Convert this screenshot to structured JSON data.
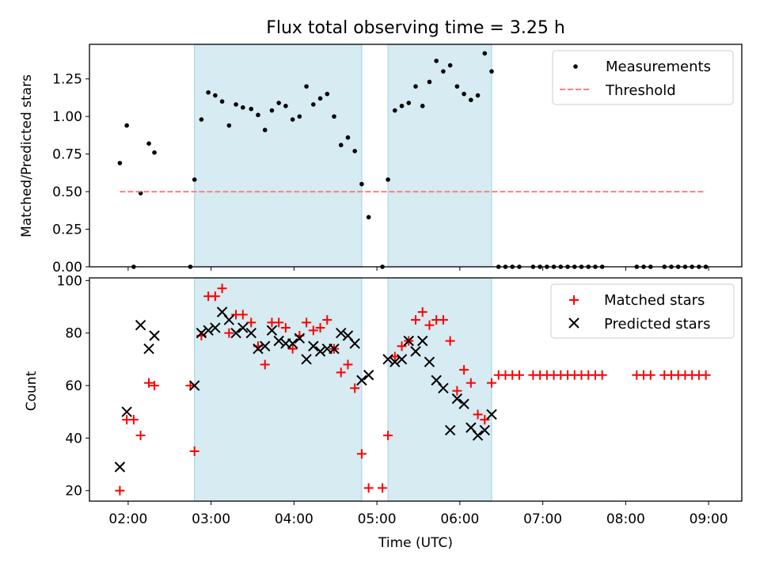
{
  "chart_data": [
    {
      "type": "scatter",
      "title": "Flux total observing time = 3.25 h",
      "xlabel": "",
      "ylabel": "Matched/Predicted stars",
      "xlim": [
        "01:32",
        "09:24"
      ],
      "ylim": [
        0,
        1.48
      ],
      "yticks": [
        "0.00",
        "0.25",
        "0.50",
        "0.75",
        "1.00",
        "1.25"
      ],
      "legend_position": "top-right",
      "shaded_intervals": [
        [
          "02:48",
          "04:49"
        ],
        [
          "05:08",
          "06:23"
        ]
      ],
      "series": [
        {
          "name": "Measurements",
          "marker": "dot",
          "color": "#000000",
          "points": [
            [
              "01:54",
              0.69
            ],
            [
              "01:59",
              0.94
            ],
            [
              "02:04",
              0.0
            ],
            [
              "02:09",
              0.49
            ],
            [
              "02:15",
              0.82
            ],
            [
              "02:19",
              0.76
            ],
            [
              "02:45",
              0.0
            ],
            [
              "02:48",
              0.58
            ],
            [
              "02:53",
              0.98
            ],
            [
              "02:58",
              1.16
            ],
            [
              "03:03",
              1.14
            ],
            [
              "03:08",
              1.1
            ],
            [
              "03:13",
              0.94
            ],
            [
              "03:18",
              1.08
            ],
            [
              "03:23",
              1.06
            ],
            [
              "03:29",
              1.05
            ],
            [
              "03:34",
              1.01
            ],
            [
              "03:39",
              0.91
            ],
            [
              "03:44",
              1.04
            ],
            [
              "03:49",
              1.09
            ],
            [
              "03:54",
              1.07
            ],
            [
              "03:59",
              0.98
            ],
            [
              "04:04",
              1.0
            ],
            [
              "04:09",
              1.2
            ],
            [
              "04:14",
              1.08
            ],
            [
              "04:19",
              1.12
            ],
            [
              "04:24",
              1.15
            ],
            [
              "04:29",
              1.0
            ],
            [
              "04:34",
              0.81
            ],
            [
              "04:39",
              0.86
            ],
            [
              "04:44",
              0.77
            ],
            [
              "04:49",
              0.55
            ],
            [
              "04:54",
              0.33
            ],
            [
              "05:04",
              0.0
            ],
            [
              "05:08",
              0.58
            ],
            [
              "05:13",
              1.04
            ],
            [
              "05:18",
              1.07
            ],
            [
              "05:23",
              1.09
            ],
            [
              "05:28",
              1.2
            ],
            [
              "05:33",
              1.07
            ],
            [
              "05:38",
              1.23
            ],
            [
              "05:43",
              1.37
            ],
            [
              "05:48",
              1.3
            ],
            [
              "05:53",
              1.34
            ],
            [
              "05:58",
              1.2
            ],
            [
              "06:03",
              1.15
            ],
            [
              "06:08",
              1.11
            ],
            [
              "06:13",
              1.14
            ],
            [
              "06:18",
              1.42
            ],
            [
              "06:23",
              1.3
            ],
            [
              "06:28",
              0.0
            ],
            [
              "06:33",
              0.0
            ],
            [
              "06:38",
              0.0
            ],
            [
              "06:43",
              0.0
            ],
            [
              "06:53",
              0.0
            ],
            [
              "06:58",
              0.0
            ],
            [
              "07:03",
              0.0
            ],
            [
              "07:08",
              0.0
            ],
            [
              "07:13",
              0.0
            ],
            [
              "07:18",
              0.0
            ],
            [
              "07:23",
              0.0
            ],
            [
              "07:28",
              0.0
            ],
            [
              "07:33",
              0.0
            ],
            [
              "07:38",
              0.0
            ],
            [
              "07:43",
              0.0
            ],
            [
              "08:08",
              0.0
            ],
            [
              "08:13",
              0.0
            ],
            [
              "08:18",
              0.0
            ],
            [
              "08:28",
              0.0
            ],
            [
              "08:33",
              0.0
            ],
            [
              "08:38",
              0.0
            ],
            [
              "08:43",
              0.0
            ],
            [
              "08:48",
              0.0
            ],
            [
              "08:53",
              0.0
            ],
            [
              "08:58",
              0.0
            ]
          ]
        },
        {
          "name": "Threshold",
          "marker": "dashed-line",
          "color": "#ff7f7f",
          "points": [
            [
              "01:54",
              0.5
            ],
            [
              "08:58",
              0.5
            ]
          ]
        }
      ]
    },
    {
      "type": "scatter",
      "title": "",
      "xlabel": "Time (UTC)",
      "ylabel": "Count",
      "xlim": [
        "01:32",
        "09:24"
      ],
      "ylim": [
        16,
        101
      ],
      "yticks": [
        "20",
        "40",
        "60",
        "80",
        "100"
      ],
      "xticks": [
        "02:00",
        "03:00",
        "04:00",
        "05:00",
        "06:00",
        "07:00",
        "08:00",
        "09:00"
      ],
      "legend_position": "top-right",
      "shaded_intervals": [
        [
          "02:48",
          "04:49"
        ],
        [
          "05:08",
          "06:23"
        ]
      ],
      "series": [
        {
          "name": "Matched stars",
          "marker": "plus",
          "color": "#ff0000",
          "points": [
            [
              "01:54",
              20
            ],
            [
              "01:59",
              47
            ],
            [
              "02:04",
              47
            ],
            [
              "02:09",
              41
            ],
            [
              "02:15",
              61
            ],
            [
              "02:19",
              60
            ],
            [
              "02:45",
              60
            ],
            [
              "02:48",
              35
            ],
            [
              "02:53",
              79
            ],
            [
              "02:58",
              94
            ],
            [
              "03:03",
              94
            ],
            [
              "03:08",
              97
            ],
            [
              "03:13",
              80
            ],
            [
              "03:18",
              87
            ],
            [
              "03:23",
              87
            ],
            [
              "03:29",
              84
            ],
            [
              "03:34",
              75
            ],
            [
              "03:39",
              68
            ],
            [
              "03:44",
              84
            ],
            [
              "03:49",
              84
            ],
            [
              "03:54",
              82
            ],
            [
              "03:59",
              74
            ],
            [
              "04:04",
              79
            ],
            [
              "04:09",
              84
            ],
            [
              "04:14",
              81
            ],
            [
              "04:19",
              82
            ],
            [
              "04:24",
              85
            ],
            [
              "04:29",
              74
            ],
            [
              "04:34",
              65
            ],
            [
              "04:39",
              68
            ],
            [
              "04:44",
              59
            ],
            [
              "04:49",
              34
            ],
            [
              "04:54",
              21
            ],
            [
              "05:04",
              21
            ],
            [
              "05:08",
              41
            ],
            [
              "05:13",
              71
            ],
            [
              "05:18",
              75
            ],
            [
              "05:23",
              77
            ],
            [
              "05:28",
              85
            ],
            [
              "05:33",
              88
            ],
            [
              "05:38",
              83
            ],
            [
              "05:43",
              85
            ],
            [
              "05:48",
              85
            ],
            [
              "05:53",
              77
            ],
            [
              "05:58",
              58
            ],
            [
              "06:03",
              66
            ],
            [
              "06:08",
              61
            ],
            [
              "06:13",
              49
            ],
            [
              "06:18",
              47
            ],
            [
              "06:23",
              61
            ],
            [
              "06:28",
              64
            ],
            [
              "06:33",
              64
            ],
            [
              "06:38",
              64
            ],
            [
              "06:43",
              64
            ],
            [
              "06:53",
              64
            ],
            [
              "06:58",
              64
            ],
            [
              "07:03",
              64
            ],
            [
              "07:08",
              64
            ],
            [
              "07:13",
              64
            ],
            [
              "07:18",
              64
            ],
            [
              "07:23",
              64
            ],
            [
              "07:28",
              64
            ],
            [
              "07:33",
              64
            ],
            [
              "07:38",
              64
            ],
            [
              "07:43",
              64
            ],
            [
              "08:08",
              64
            ],
            [
              "08:13",
              64
            ],
            [
              "08:18",
              64
            ],
            [
              "08:28",
              64
            ],
            [
              "08:33",
              64
            ],
            [
              "08:38",
              64
            ],
            [
              "08:43",
              64
            ],
            [
              "08:48",
              64
            ],
            [
              "08:53",
              64
            ],
            [
              "08:58",
              64
            ]
          ]
        },
        {
          "name": "Predicted stars",
          "marker": "x",
          "color": "#000000",
          "points": [
            [
              "01:54",
              29
            ],
            [
              "01:59",
              50
            ],
            [
              "02:09",
              83
            ],
            [
              "02:15",
              74
            ],
            [
              "02:19",
              79
            ],
            [
              "02:48",
              60
            ],
            [
              "02:53",
              80
            ],
            [
              "02:58",
              81
            ],
            [
              "03:03",
              82
            ],
            [
              "03:08",
              88
            ],
            [
              "03:13",
              85
            ],
            [
              "03:18",
              80
            ],
            [
              "03:23",
              82
            ],
            [
              "03:29",
              80
            ],
            [
              "03:34",
              74
            ],
            [
              "03:39",
              75
            ],
            [
              "03:44",
              81
            ],
            [
              "03:49",
              77
            ],
            [
              "03:54",
              76
            ],
            [
              "03:59",
              76
            ],
            [
              "04:04",
              78
            ],
            [
              "04:09",
              70
            ],
            [
              "04:14",
              75
            ],
            [
              "04:19",
              73
            ],
            [
              "04:24",
              74
            ],
            [
              "04:29",
              74
            ],
            [
              "04:34",
              80
            ],
            [
              "04:39",
              79
            ],
            [
              "04:44",
              76
            ],
            [
              "04:49",
              62
            ],
            [
              "04:54",
              64
            ],
            [
              "05:08",
              70
            ],
            [
              "05:13",
              69
            ],
            [
              "05:18",
              70
            ],
            [
              "05:23",
              77
            ],
            [
              "05:28",
              73
            ],
            [
              "05:33",
              77
            ],
            [
              "05:38",
              69
            ],
            [
              "05:43",
              62
            ],
            [
              "05:48",
              59
            ],
            [
              "05:53",
              43
            ],
            [
              "05:58",
              55
            ],
            [
              "06:03",
              53
            ],
            [
              "06:08",
              44
            ],
            [
              "06:13",
              41
            ],
            [
              "06:18",
              43
            ],
            [
              "06:23",
              49
            ]
          ]
        }
      ]
    }
  ],
  "colors": {
    "shade": "#add8e6",
    "matched": "#ff0000",
    "threshold": "#ff7f7f",
    "black": "#000000"
  }
}
